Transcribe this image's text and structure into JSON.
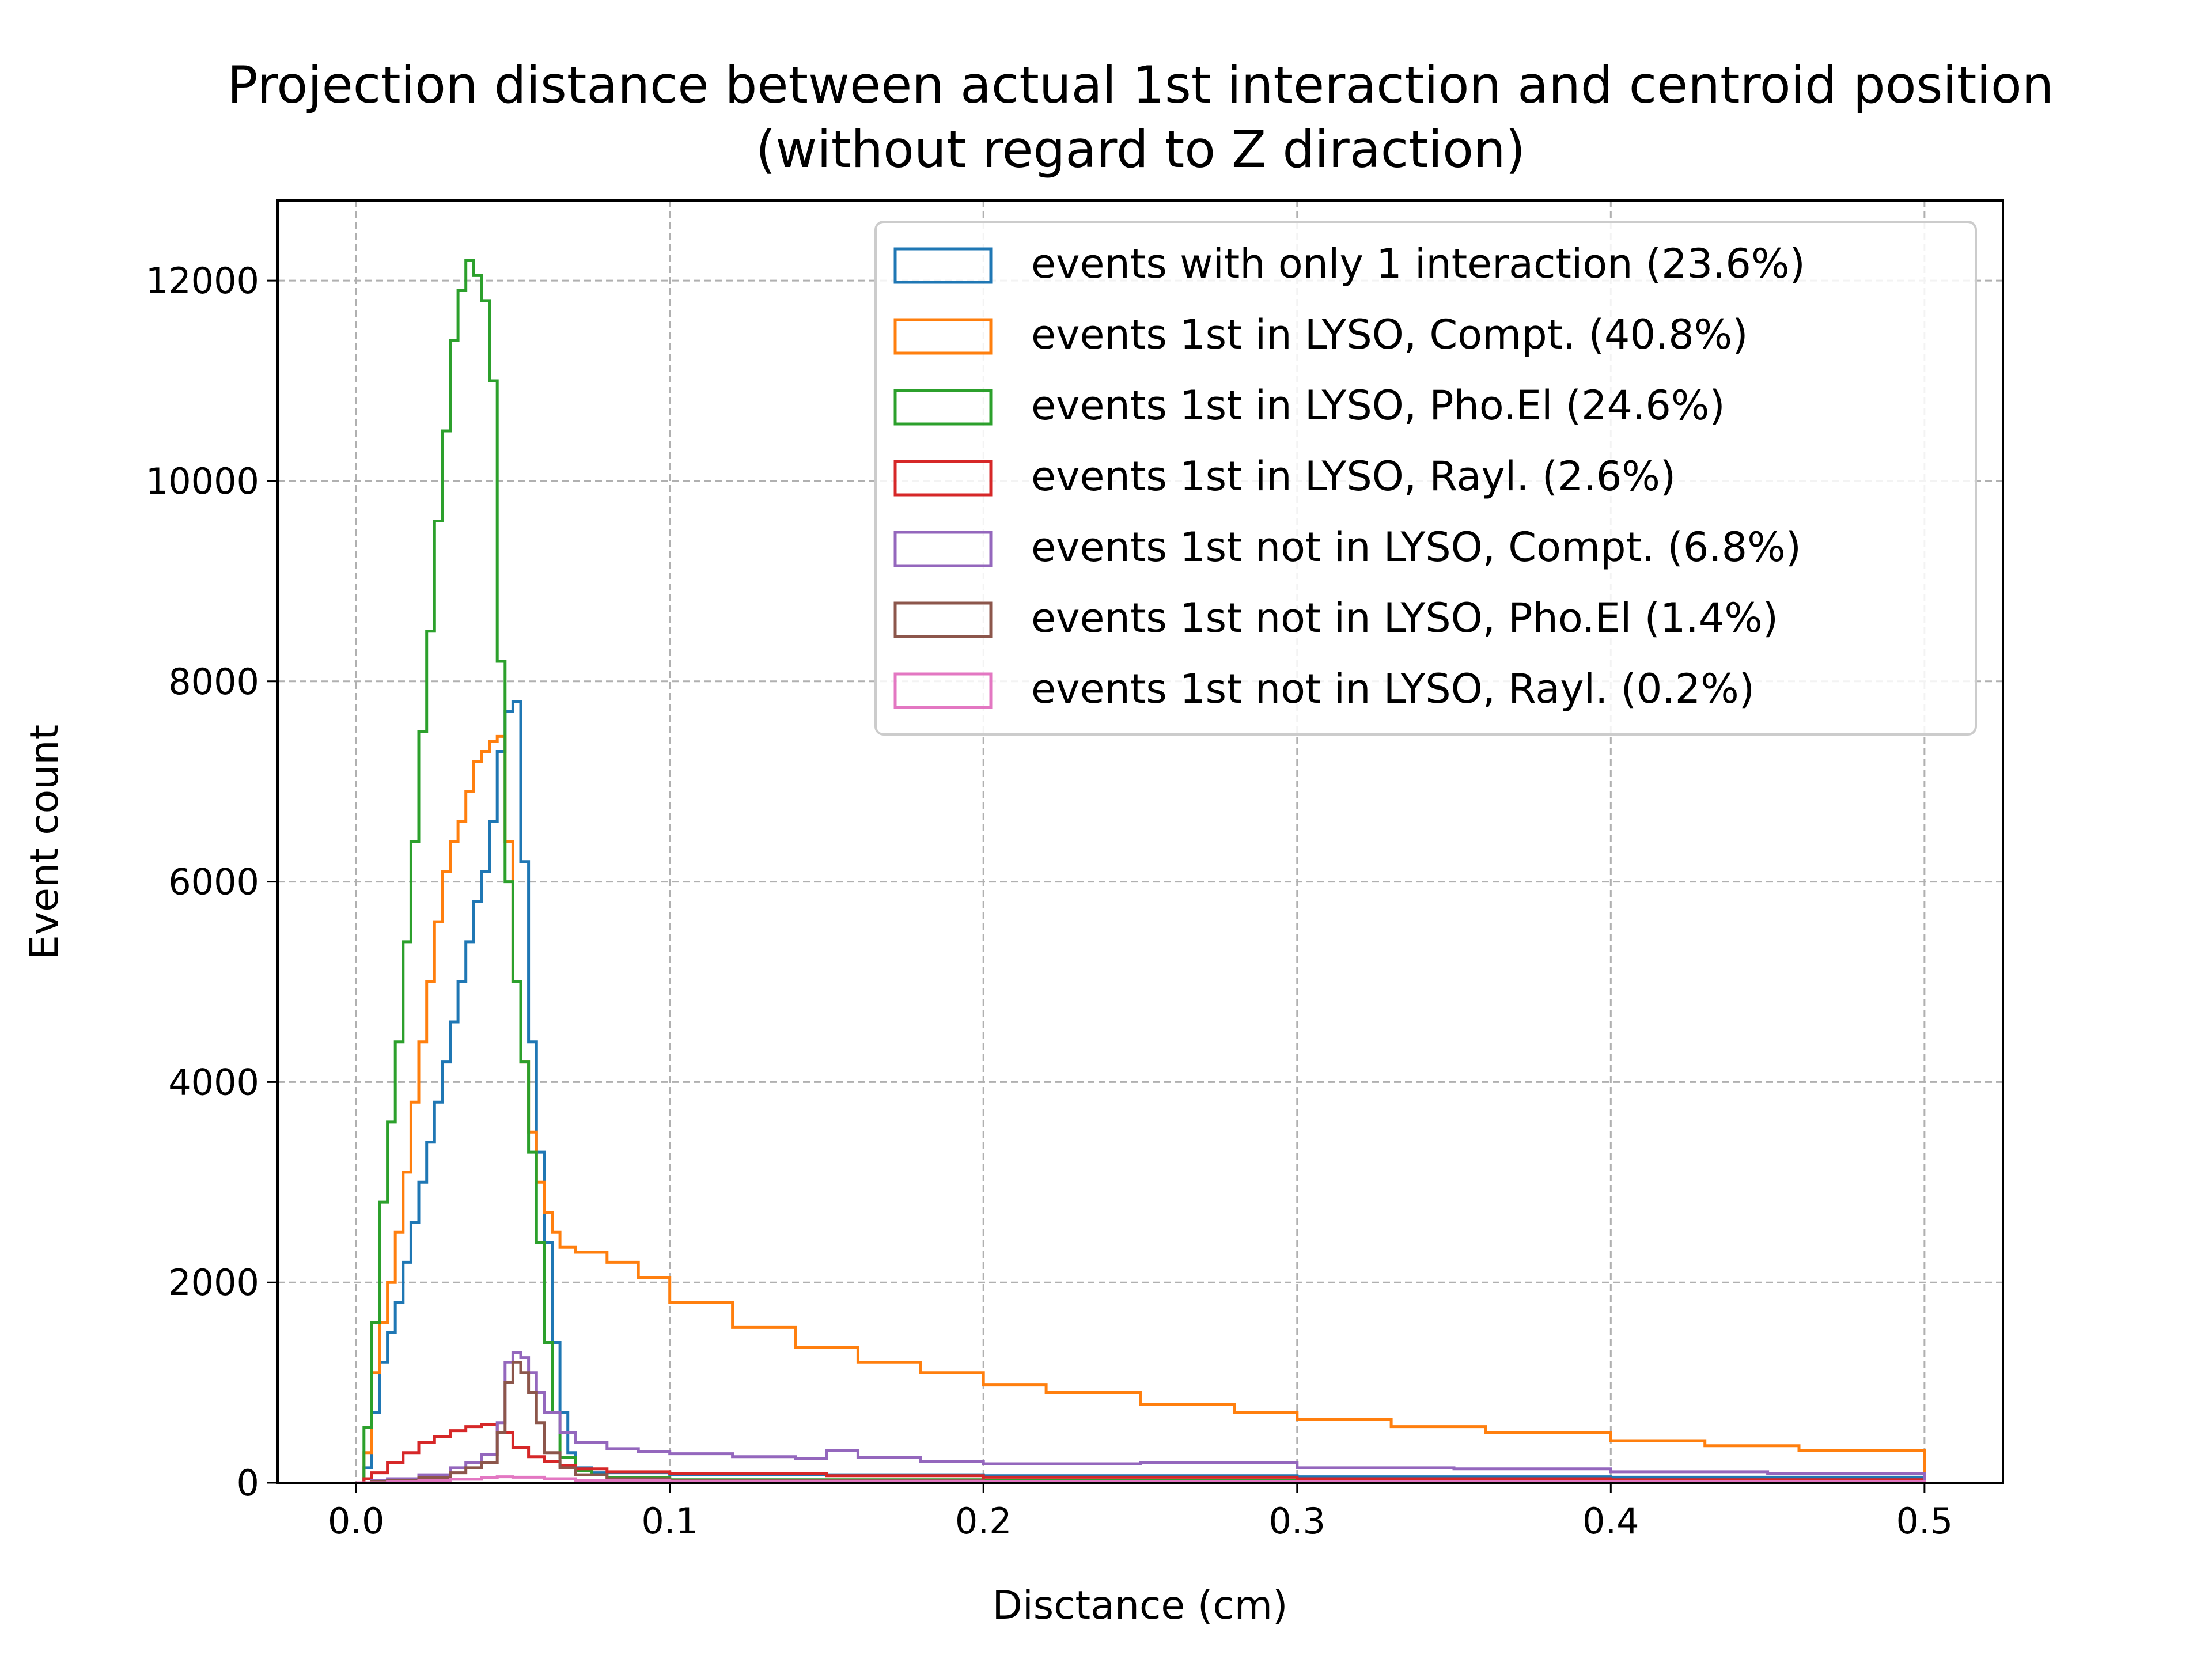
{
  "chart_data": {
    "type": "histogram-step",
    "title": "Projection distance between actual 1st interaction and centroid position",
    "subtitle": "(without regard to Z diraction)",
    "xlabel": "Disctance (cm)",
    "ylabel": "Event count",
    "xlim": [
      -0.025,
      0.525
    ],
    "ylim": [
      0,
      12800
    ],
    "xticks": [
      0.0,
      0.1,
      0.2,
      0.3,
      0.4,
      0.5
    ],
    "xtick_labels": [
      "0.0",
      "0.1",
      "0.2",
      "0.3",
      "0.4",
      "0.5"
    ],
    "yticks": [
      0,
      2000,
      4000,
      6000,
      8000,
      10000,
      12000
    ],
    "ytick_labels": [
      "0",
      "2000",
      "4000",
      "6000",
      "8000",
      "10000",
      "12000"
    ],
    "grid": true,
    "legend_position": "top-right",
    "series": [
      {
        "name": "events with only 1 interaction (23.6%)",
        "color": "#1f77b4",
        "points": [
          [
            0.0,
            0
          ],
          [
            0.0025,
            150
          ],
          [
            0.005,
            700
          ],
          [
            0.0075,
            1200
          ],
          [
            0.01,
            1500
          ],
          [
            0.0125,
            1800
          ],
          [
            0.015,
            2200
          ],
          [
            0.0175,
            2600
          ],
          [
            0.02,
            3000
          ],
          [
            0.0225,
            3400
          ],
          [
            0.025,
            3800
          ],
          [
            0.0275,
            4200
          ],
          [
            0.03,
            4600
          ],
          [
            0.0325,
            5000
          ],
          [
            0.035,
            5400
          ],
          [
            0.0375,
            5800
          ],
          [
            0.04,
            6100
          ],
          [
            0.0425,
            6600
          ],
          [
            0.045,
            7300
          ],
          [
            0.0475,
            7700
          ],
          [
            0.05,
            7800
          ],
          [
            0.0525,
            6200
          ],
          [
            0.055,
            4400
          ],
          [
            0.0575,
            3300
          ],
          [
            0.06,
            2400
          ],
          [
            0.0625,
            1400
          ],
          [
            0.065,
            700
          ],
          [
            0.0675,
            300
          ],
          [
            0.07,
            150
          ],
          [
            0.075,
            100
          ],
          [
            0.1,
            80
          ],
          [
            0.2,
            70
          ],
          [
            0.3,
            60
          ],
          [
            0.4,
            55
          ],
          [
            0.5,
            50
          ]
        ]
      },
      {
        "name": "events 1st in LYSO, Compt. (40.8%)",
        "color": "#ff7f0e",
        "points": [
          [
            0.0,
            0
          ],
          [
            0.0025,
            300
          ],
          [
            0.005,
            1100
          ],
          [
            0.0075,
            1600
          ],
          [
            0.01,
            2000
          ],
          [
            0.0125,
            2500
          ],
          [
            0.015,
            3100
          ],
          [
            0.0175,
            3800
          ],
          [
            0.02,
            4400
          ],
          [
            0.0225,
            5000
          ],
          [
            0.025,
            5600
          ],
          [
            0.0275,
            6100
          ],
          [
            0.03,
            6400
          ],
          [
            0.0325,
            6600
          ],
          [
            0.035,
            6900
          ],
          [
            0.0375,
            7200
          ],
          [
            0.04,
            7300
          ],
          [
            0.0425,
            7400
          ],
          [
            0.045,
            7450
          ],
          [
            0.0475,
            6400
          ],
          [
            0.05,
            5000
          ],
          [
            0.0525,
            4200
          ],
          [
            0.055,
            3500
          ],
          [
            0.0575,
            3000
          ],
          [
            0.06,
            2700
          ],
          [
            0.0625,
            2500
          ],
          [
            0.065,
            2350
          ],
          [
            0.07,
            2300
          ],
          [
            0.08,
            2200
          ],
          [
            0.09,
            2050
          ],
          [
            0.1,
            1800
          ],
          [
            0.12,
            1550
          ],
          [
            0.14,
            1350
          ],
          [
            0.16,
            1200
          ],
          [
            0.18,
            1100
          ],
          [
            0.2,
            980
          ],
          [
            0.22,
            900
          ],
          [
            0.25,
            780
          ],
          [
            0.28,
            700
          ],
          [
            0.3,
            630
          ],
          [
            0.33,
            560
          ],
          [
            0.36,
            500
          ],
          [
            0.4,
            420
          ],
          [
            0.43,
            370
          ],
          [
            0.46,
            320
          ],
          [
            0.5,
            270
          ]
        ]
      },
      {
        "name": "events 1st in LYSO, Pho.El (24.6%)",
        "color": "#2ca02c",
        "points": [
          [
            0.0,
            0
          ],
          [
            0.0025,
            550
          ],
          [
            0.005,
            1600
          ],
          [
            0.0075,
            2800
          ],
          [
            0.01,
            3600
          ],
          [
            0.0125,
            4400
          ],
          [
            0.015,
            5400
          ],
          [
            0.0175,
            6400
          ],
          [
            0.02,
            7500
          ],
          [
            0.0225,
            8500
          ],
          [
            0.025,
            9600
          ],
          [
            0.0275,
            10500
          ],
          [
            0.03,
            11400
          ],
          [
            0.0325,
            11900
          ],
          [
            0.035,
            12200
          ],
          [
            0.0375,
            12050
          ],
          [
            0.04,
            11800
          ],
          [
            0.0425,
            11000
          ],
          [
            0.045,
            8200
          ],
          [
            0.0475,
            6000
          ],
          [
            0.05,
            5000
          ],
          [
            0.0525,
            4200
          ],
          [
            0.055,
            3300
          ],
          [
            0.0575,
            2400
          ],
          [
            0.06,
            1400
          ],
          [
            0.0625,
            700
          ],
          [
            0.065,
            250
          ],
          [
            0.07,
            120
          ],
          [
            0.075,
            80
          ],
          [
            0.08,
            50
          ],
          [
            0.1,
            30
          ],
          [
            0.2,
            20
          ],
          [
            0.3,
            15
          ],
          [
            0.5,
            10
          ]
        ]
      },
      {
        "name": "events 1st in LYSO, Rayl. (2.6%)",
        "color": "#d62728",
        "points": [
          [
            0.0,
            0
          ],
          [
            0.0025,
            40
          ],
          [
            0.005,
            100
          ],
          [
            0.01,
            200
          ],
          [
            0.015,
            300
          ],
          [
            0.02,
            400
          ],
          [
            0.025,
            460
          ],
          [
            0.03,
            520
          ],
          [
            0.035,
            560
          ],
          [
            0.04,
            580
          ],
          [
            0.045,
            500
          ],
          [
            0.05,
            350
          ],
          [
            0.055,
            260
          ],
          [
            0.06,
            210
          ],
          [
            0.065,
            170
          ],
          [
            0.07,
            140
          ],
          [
            0.08,
            110
          ],
          [
            0.1,
            90
          ],
          [
            0.15,
            70
          ],
          [
            0.2,
            55
          ],
          [
            0.3,
            40
          ],
          [
            0.4,
            30
          ],
          [
            0.5,
            25
          ]
        ]
      },
      {
        "name": "events 1st not in LYSO, Compt. (6.8%)",
        "color": "#9467bd",
        "points": [
          [
            0.0,
            0
          ],
          [
            0.005,
            20
          ],
          [
            0.01,
            40
          ],
          [
            0.02,
            80
          ],
          [
            0.03,
            150
          ],
          [
            0.035,
            200
          ],
          [
            0.04,
            280
          ],
          [
            0.045,
            600
          ],
          [
            0.0475,
            1200
          ],
          [
            0.05,
            1300
          ],
          [
            0.0525,
            1250
          ],
          [
            0.055,
            1100
          ],
          [
            0.0575,
            900
          ],
          [
            0.06,
            700
          ],
          [
            0.065,
            500
          ],
          [
            0.07,
            400
          ],
          [
            0.08,
            340
          ],
          [
            0.09,
            310
          ],
          [
            0.1,
            290
          ],
          [
            0.12,
            260
          ],
          [
            0.14,
            240
          ],
          [
            0.15,
            320
          ],
          [
            0.16,
            250
          ],
          [
            0.18,
            210
          ],
          [
            0.2,
            190
          ],
          [
            0.25,
            200
          ],
          [
            0.3,
            150
          ],
          [
            0.35,
            140
          ],
          [
            0.4,
            110
          ],
          [
            0.45,
            95
          ],
          [
            0.5,
            80
          ]
        ]
      },
      {
        "name": "events 1st not in LYSO, Pho.El (1.4%)",
        "color": "#8c564b",
        "points": [
          [
            0.0,
            0
          ],
          [
            0.005,
            10
          ],
          [
            0.01,
            20
          ],
          [
            0.02,
            50
          ],
          [
            0.03,
            100
          ],
          [
            0.035,
            150
          ],
          [
            0.04,
            200
          ],
          [
            0.045,
            500
          ],
          [
            0.0475,
            1000
          ],
          [
            0.05,
            1200
          ],
          [
            0.0525,
            1100
          ],
          [
            0.055,
            900
          ],
          [
            0.0575,
            600
          ],
          [
            0.06,
            300
          ],
          [
            0.065,
            150
          ],
          [
            0.07,
            80
          ],
          [
            0.08,
            40
          ],
          [
            0.1,
            20
          ],
          [
            0.2,
            10
          ],
          [
            0.5,
            5
          ]
        ]
      },
      {
        "name": "events 1st not in LYSO, Rayl. (0.2%)",
        "color": "#e377c2",
        "points": [
          [
            0.0,
            0
          ],
          [
            0.01,
            10
          ],
          [
            0.02,
            20
          ],
          [
            0.03,
            35
          ],
          [
            0.04,
            50
          ],
          [
            0.045,
            60
          ],
          [
            0.05,
            55
          ],
          [
            0.06,
            40
          ],
          [
            0.07,
            25
          ],
          [
            0.1,
            15
          ],
          [
            0.2,
            10
          ],
          [
            0.5,
            5
          ]
        ]
      }
    ]
  }
}
